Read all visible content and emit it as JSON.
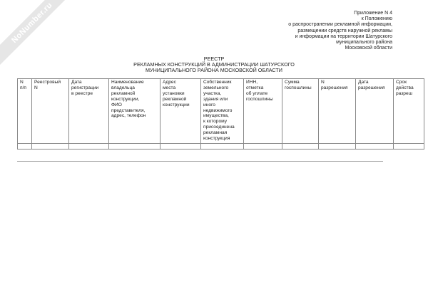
{
  "watermark": "NoNumber.ru",
  "appendix": [
    "Приложение N 4",
    "к Положению",
    "о распространении рекламной информации,",
    "размещении средств наружной рекламы",
    "и информации на территории Шатурского",
    "муниципального района",
    "Московской области"
  ],
  "title": [
    "РЕЕСТР",
    "РЕКЛАМНЫХ КОНСТРУКЦИЙ В АДМИНИСТРАЦИИ ШАТУРСКОГО",
    "МУНИЦИПАЛЬНОГО РАЙОНА МОСКОВСКОЙ ОБЛАСТИ"
  ],
  "table": {
    "headers": [
      "N\nп/п",
      "Реестровый\nN",
      "Дата\nрегистрации\nв реестре",
      "Наименование\nвладельца\nрекламной\nконструкции,\nФИО\nпредставителя,\nадрес, телефон",
      "Адрес\nместа\nустановки\nрекламной\nконструкции",
      "Собственник\nземельного\nучастка,\nздания или\nиного\nнедвижимого\nимущества,\nк которому\nприсоединена\nрекламная\nконструкция",
      "ИНН,\nотметка\nоб уплате\nгоспошлины",
      "Сумма\nгоспошлины",
      "N\nразрешения",
      "Дата\nразрешения",
      "Срок\nдейства\nразреш"
    ]
  }
}
